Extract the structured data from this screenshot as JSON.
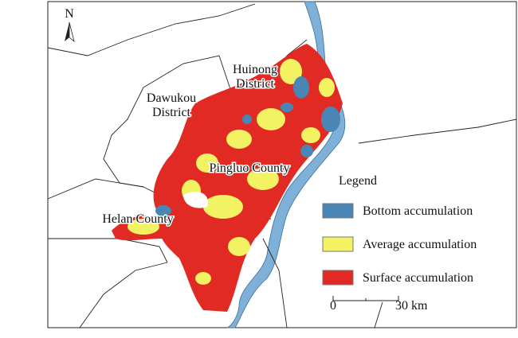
{
  "north_arrow": {
    "label": "N"
  },
  "regions": [
    {
      "lines": [
        "Huinong",
        "District"
      ]
    },
    {
      "lines": [
        "Dawukou",
        "District"
      ]
    },
    {
      "lines": [
        "Pingluo County"
      ]
    },
    {
      "lines": [
        "Helan County"
      ]
    }
  ],
  "legend": {
    "title": "Legend",
    "items": [
      {
        "label": "Bottom accumulation",
        "color": "#4a86b5"
      },
      {
        "label": "Average accumulation",
        "color": "#f2f263"
      },
      {
        "label": "Surface accumulation",
        "color": "#e02a23"
      }
    ]
  },
  "scale_bar": {
    "start": "0",
    "end": "30 km"
  }
}
